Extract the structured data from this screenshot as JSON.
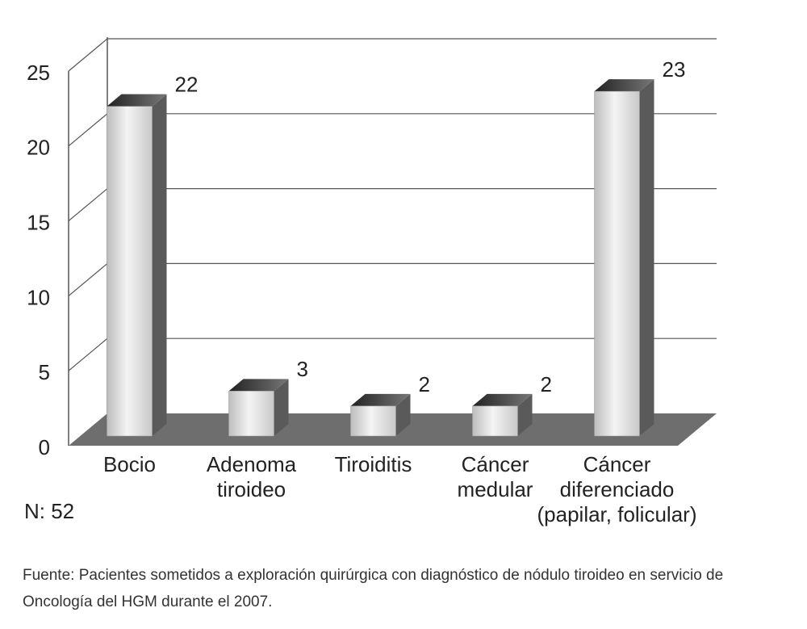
{
  "chart_data": {
    "type": "bar3d",
    "categories": [
      [
        "Bocio"
      ],
      [
        "Adenoma",
        "tiroideo"
      ],
      [
        "Tiroiditis"
      ],
      [
        "Cáncer",
        "medular"
      ],
      [
        "Cáncer",
        "diferenciado",
        "(papilar, folicular)"
      ]
    ],
    "values": [
      22,
      3,
      2,
      2,
      23
    ],
    "color": "#d8d8d8",
    "ylim": [
      0,
      25
    ],
    "yticks": [
      0,
      5,
      10,
      15,
      20,
      25
    ],
    "grid": true,
    "annotations": [
      "N: 52",
      "Fuente: Pacientes sometidos a exploración quirúrgica con diagnóstico de nódulo tiroideo en servicio de Oncología del HGM durante el 2007."
    ]
  }
}
